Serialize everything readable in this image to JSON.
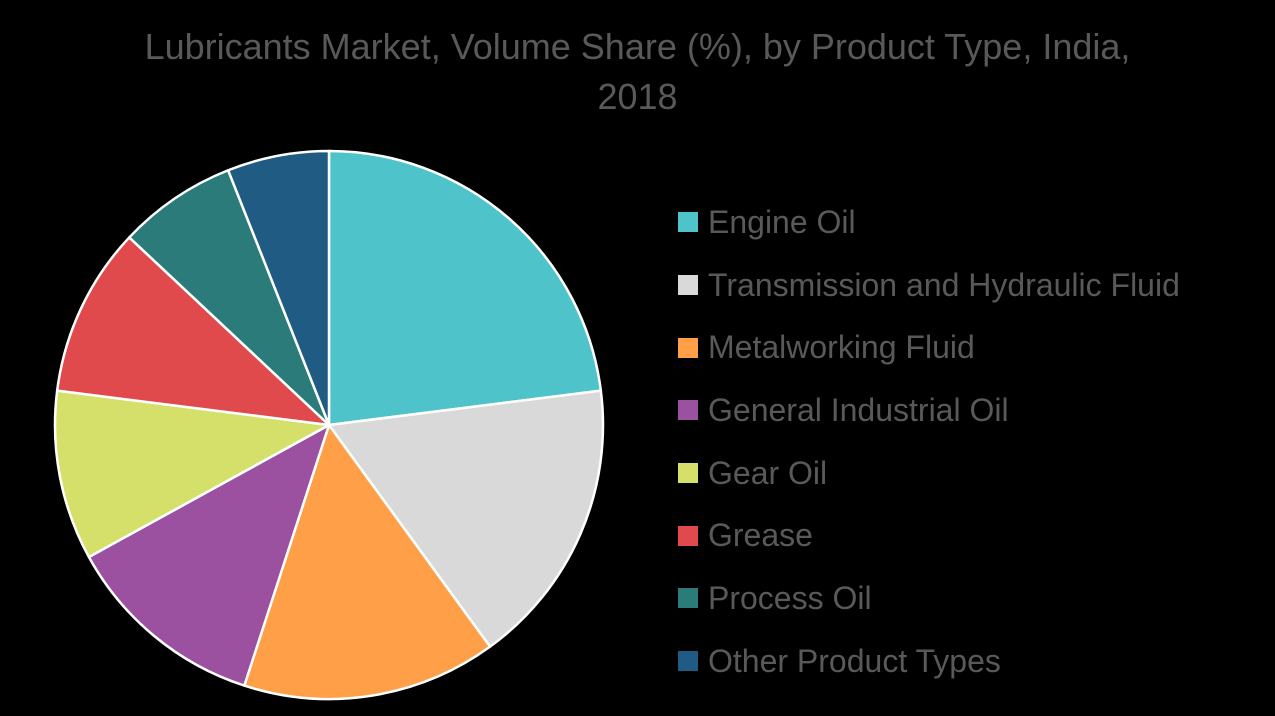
{
  "chart_data": {
    "type": "pie",
    "title_line1": "Lubricants Market, Volume Share (%), by Product Type, India,",
    "title_line2": "2018",
    "series": [
      {
        "name": "Engine Oil",
        "value": 23.0,
        "color": "#4FC3CA"
      },
      {
        "name": "Transmission and Hydraulic Fluid",
        "value": 17.0,
        "color": "#D9D9D9"
      },
      {
        "name": "Metalworking Fluid",
        "value": 15.0,
        "color": "#FFA048"
      },
      {
        "name": "General Industrial Oil",
        "value": 12.0,
        "color": "#9B51A0"
      },
      {
        "name": "Gear Oil",
        "value": 10.0,
        "color": "#D4E06A"
      },
      {
        "name": "Grease",
        "value": 10.0,
        "color": "#E04A4C"
      },
      {
        "name": "Process Oil",
        "value": 7.0,
        "color": "#2A7B7A"
      },
      {
        "name": "Other Product Types",
        "value": 6.0,
        "color": "#1F5B82"
      }
    ],
    "legend_position": "right"
  }
}
